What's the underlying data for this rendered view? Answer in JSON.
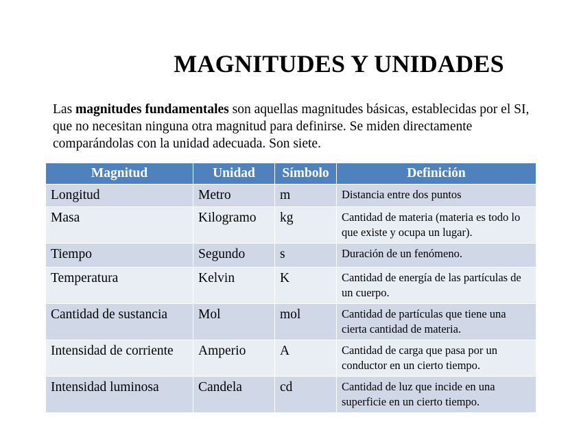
{
  "title": "MAGNITUDES Y UNIDADES",
  "intro": {
    "before": "Las ",
    "bold": "magnitudes fundamentales",
    "after": " son aquellas magnitudes básicas, establecidas por el SI, que no necesitan ninguna otra magnitud para definirse. Se miden directamente comparándolas con la unidad adecuada. Son siete."
  },
  "table": {
    "header_color": "#4f81bd",
    "row_colors": [
      "#d0d8e8",
      "#e9edf4"
    ],
    "headers": [
      "Magnitud",
      "Unidad",
      "Símbolo",
      "Definición"
    ],
    "rows": [
      [
        "Longitud",
        "Metro",
        "m",
        "Distancia entre dos puntos"
      ],
      [
        "Masa",
        "Kilogramo",
        "kg",
        "Cantidad de materia (materia es todo lo que existe y ocupa un lugar)."
      ],
      [
        "Tiempo",
        "Segundo",
        "s",
        "Duración de un fenómeno."
      ],
      [
        "Temperatura",
        "Kelvin",
        "K",
        "Cantidad de energía de las partículas de un cuerpo."
      ],
      [
        "Cantidad de sustancia",
        "Mol",
        "mol",
        "Cantidad de partículas que tiene una cierta cantidad de materia."
      ],
      [
        "Intensidad de corriente",
        "Amperio",
        "A",
        "Cantidad de carga que pasa por un conductor en un cierto tiempo."
      ],
      [
        "Intensidad luminosa",
        "Candela",
        "cd",
        "Cantidad de luz que incide en una superficie en un cierto tiempo."
      ]
    ]
  }
}
